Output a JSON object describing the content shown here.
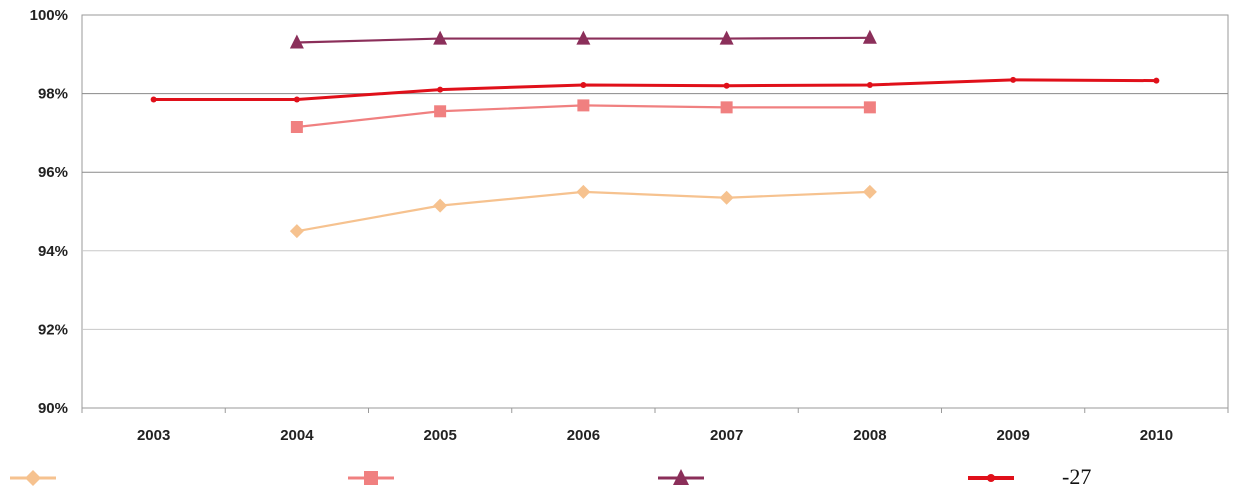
{
  "chart_data": {
    "type": "line",
    "title": "",
    "xlabel": "",
    "ylabel": "",
    "categories": [
      "2003",
      "2004",
      "2005",
      "2006",
      "2007",
      "2008",
      "2009",
      "2010"
    ],
    "ylim": [
      90,
      100
    ],
    "yticks": [
      90,
      92,
      94,
      96,
      98,
      100
    ],
    "ytick_labels": [
      "90%",
      "92%",
      "94%",
      "96%",
      "98%",
      "100%"
    ],
    "grid": "horizontal",
    "legend_position": "bottom",
    "series": [
      {
        "color": "#f6c28f",
        "marker": "diamond",
        "values": [
          null,
          94.5,
          95.15,
          95.5,
          95.35,
          95.5,
          null,
          null
        ]
      },
      {
        "color": "#f08080",
        "marker": "square",
        "values": [
          null,
          97.15,
          97.55,
          97.7,
          97.65,
          97.65,
          null,
          null
        ]
      },
      {
        "color": "#8b2f5a",
        "marker": "triangle",
        "values": [
          null,
          99.3,
          99.4,
          99.4,
          99.4,
          99.42,
          null,
          null
        ]
      },
      {
        "color": "#e0101a",
        "marker": "dot",
        "values": [
          97.85,
          97.85,
          98.1,
          98.22,
          98.2,
          98.22,
          98.35,
          98.33
        ]
      }
    ],
    "legend_extra_text": "-27"
  }
}
